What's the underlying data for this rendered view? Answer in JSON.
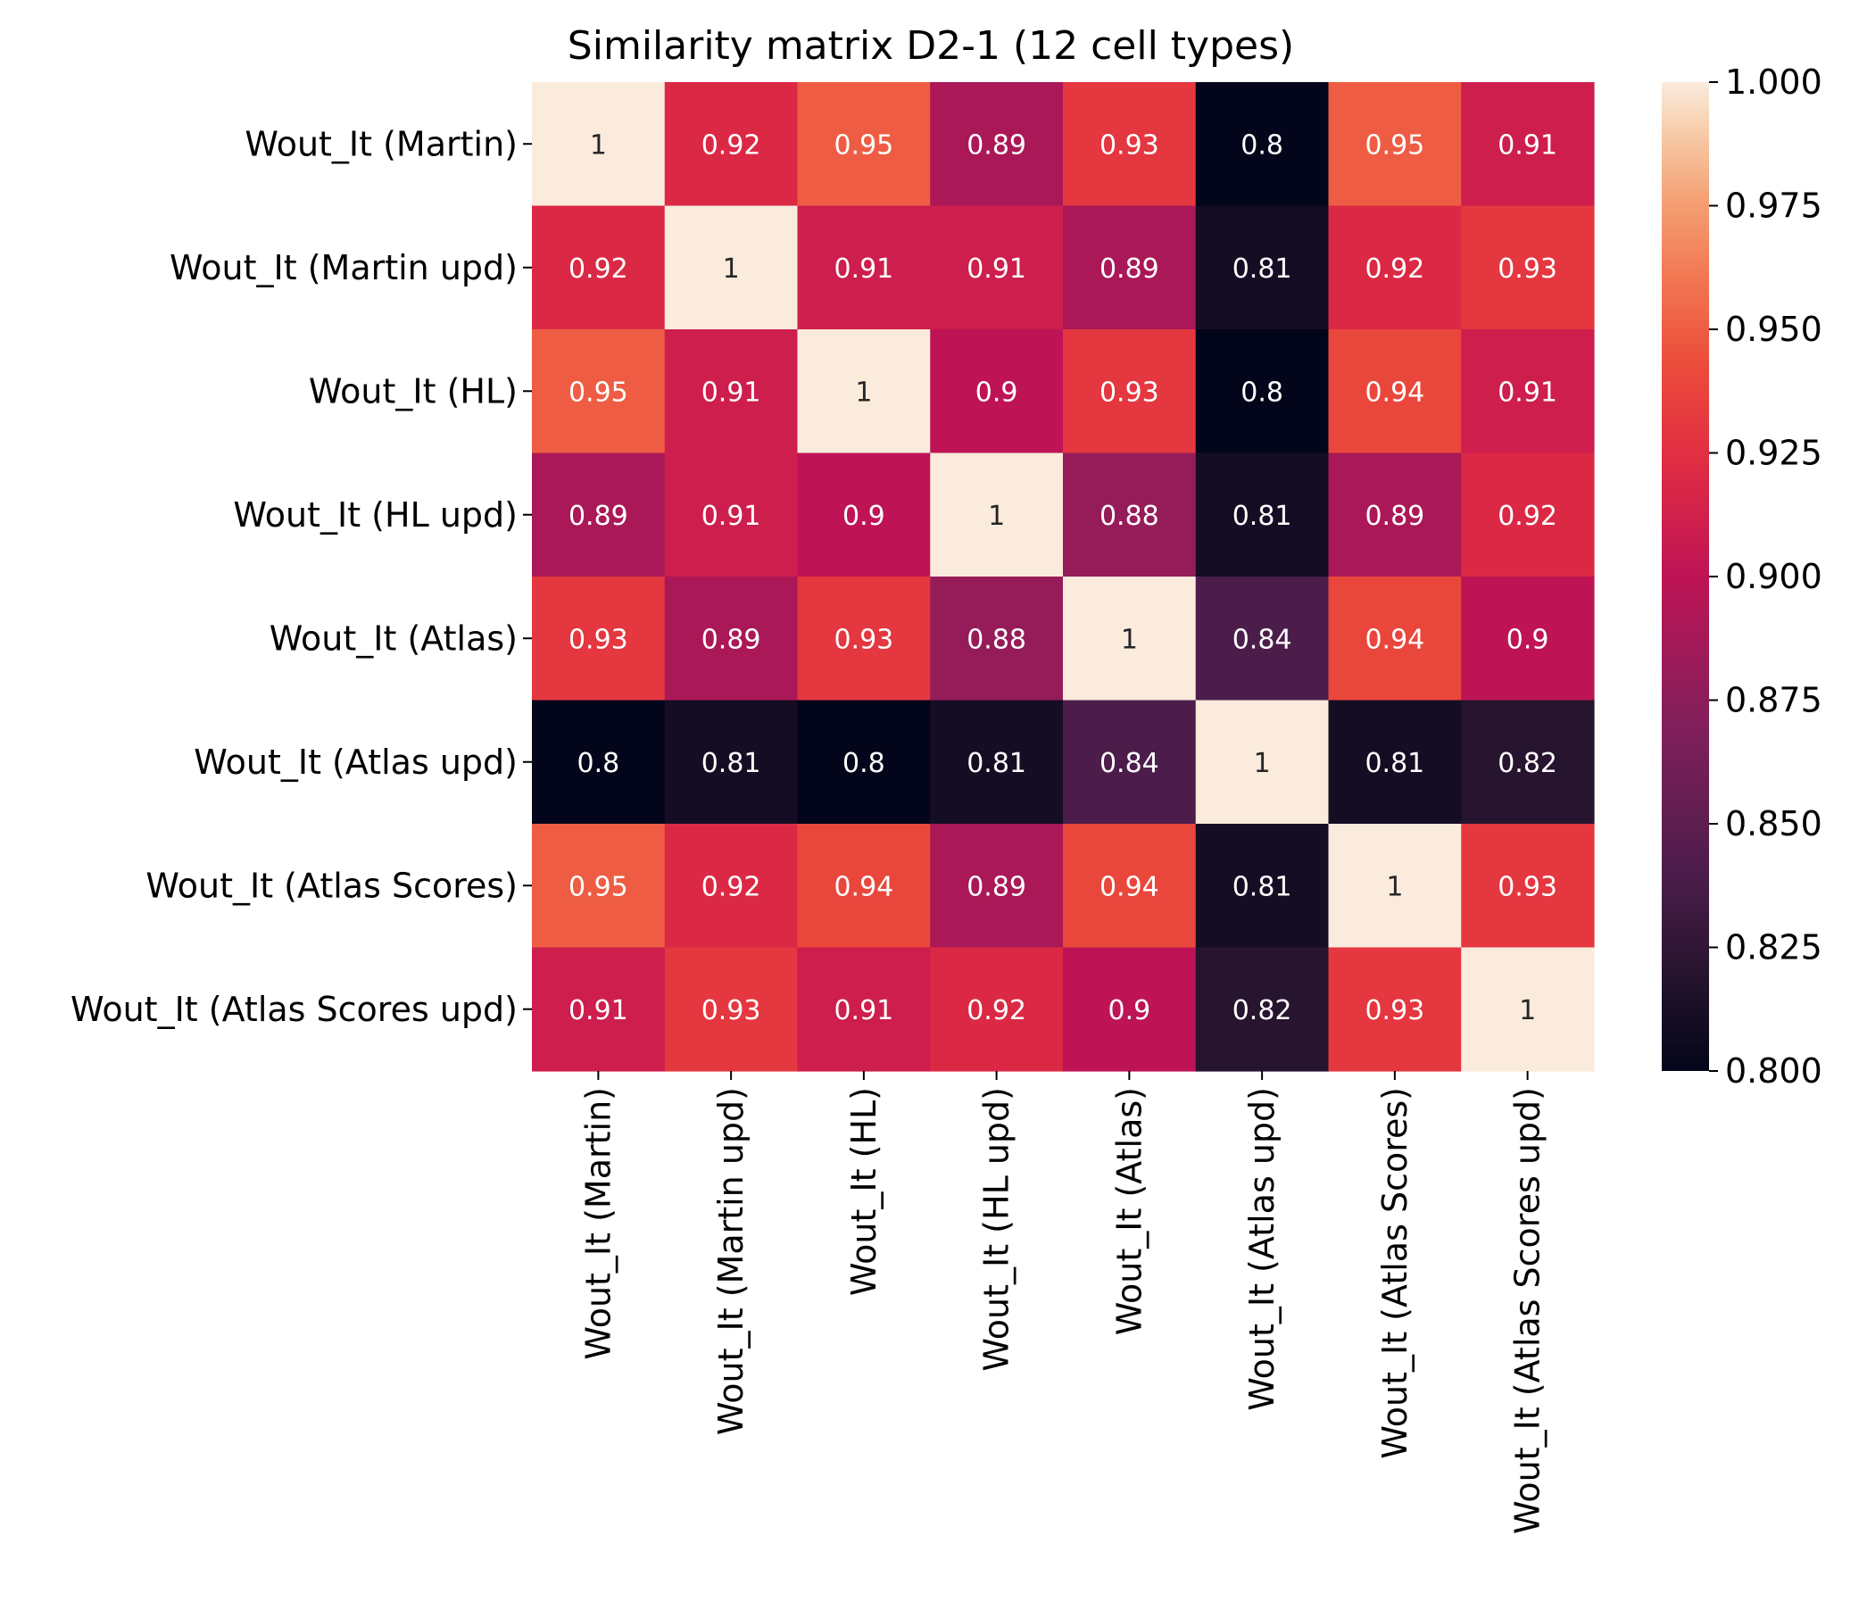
{
  "chart_data": {
    "type": "heatmap",
    "title": "Similarity matrix D2-1 (12 cell types)",
    "row_labels": [
      "Wout_It (Martin)",
      "Wout_It (Martin upd)",
      "Wout_It (HL)",
      "Wout_It (HL upd)",
      "Wout_It (Atlas)",
      "Wout_It (Atlas upd)",
      "Wout_It (Atlas Scores)",
      "Wout_It (Atlas Scores upd)"
    ],
    "col_labels": [
      "Wout_It (Martin)",
      "Wout_It (Martin upd)",
      "Wout_It (HL)",
      "Wout_It (HL upd)",
      "Wout_It (Atlas)",
      "Wout_It (Atlas upd)",
      "Wout_It (Atlas Scores)",
      "Wout_It (Atlas Scores upd)"
    ],
    "values": [
      [
        1,
        0.92,
        0.95,
        0.89,
        0.93,
        0.8,
        0.95,
        0.91
      ],
      [
        0.92,
        1,
        0.91,
        0.91,
        0.89,
        0.81,
        0.92,
        0.93
      ],
      [
        0.95,
        0.91,
        1,
        0.9,
        0.93,
        0.8,
        0.94,
        0.91
      ],
      [
        0.89,
        0.91,
        0.9,
        1,
        0.88,
        0.81,
        0.89,
        0.92
      ],
      [
        0.93,
        0.89,
        0.93,
        0.88,
        1,
        0.84,
        0.94,
        0.9
      ],
      [
        0.8,
        0.81,
        0.8,
        0.81,
        0.84,
        1,
        0.81,
        0.82
      ],
      [
        0.95,
        0.92,
        0.94,
        0.89,
        0.94,
        0.81,
        1,
        0.93
      ],
      [
        0.91,
        0.93,
        0.91,
        0.92,
        0.9,
        0.82,
        0.93,
        1
      ]
    ],
    "annotations": [
      [
        "1",
        "0.92",
        "0.95",
        "0.89",
        "0.93",
        "0.8",
        "0.95",
        "0.91"
      ],
      [
        "0.92",
        "1",
        "0.91",
        "0.91",
        "0.89",
        "0.81",
        "0.92",
        "0.93"
      ],
      [
        "0.95",
        "0.91",
        "1",
        "0.9",
        "0.93",
        "0.8",
        "0.94",
        "0.91"
      ],
      [
        "0.89",
        "0.91",
        "0.9",
        "1",
        "0.88",
        "0.81",
        "0.89",
        "0.92"
      ],
      [
        "0.93",
        "0.89",
        "0.93",
        "0.88",
        "1",
        "0.84",
        "0.94",
        "0.9"
      ],
      [
        "0.8",
        "0.81",
        "0.8",
        "0.81",
        "0.84",
        "1",
        "0.81",
        "0.82"
      ],
      [
        "0.95",
        "0.92",
        "0.94",
        "0.89",
        "0.94",
        "0.81",
        "1",
        "0.93"
      ],
      [
        "0.91",
        "0.93",
        "0.91",
        "0.92",
        "0.9",
        "0.82",
        "0.93",
        "1"
      ]
    ],
    "colorbar": {
      "colormap": "rocket",
      "range": [
        0.8,
        1.0
      ],
      "ticks": [
        0.8,
        0.825,
        0.85,
        0.875,
        0.9,
        0.925,
        0.95,
        0.975,
        1.0
      ],
      "tick_labels": [
        "0.800",
        "0.825",
        "0.850",
        "0.875",
        "0.900",
        "0.925",
        "0.950",
        "0.975",
        "1.000"
      ]
    },
    "grid": false,
    "legend": "colorbar-right"
  }
}
